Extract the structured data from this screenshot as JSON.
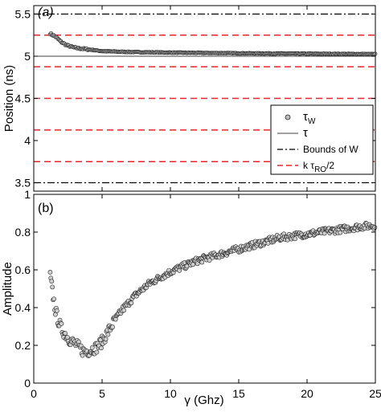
{
  "chart_data": [
    {
      "type": "scatter",
      "panel_label": "(a)",
      "xlabel": "",
      "ylabel": "Position (ns)",
      "xlim": [
        0,
        25
      ],
      "ylim": [
        3.4,
        5.6
      ],
      "x_ticks": [
        0,
        5,
        10,
        15,
        20,
        25
      ],
      "y_ticks": [
        3.5,
        4,
        4.5,
        5,
        5.5
      ],
      "y_tick_labels": [
        "3.5",
        "4",
        "4.5",
        "5",
        "5.5"
      ],
      "grid": false,
      "legend_position": "bottom-right",
      "legend": [
        {
          "symbol": "circle",
          "text": "τ",
          "sub": "W"
        },
        {
          "symbol": "solid-line",
          "text": "τ",
          "sub": ""
        },
        {
          "symbol": "dash-dot-line",
          "text": "Bounds of W",
          "sub": ""
        },
        {
          "symbol": "red-dashed-line",
          "text": "k τ",
          "sub": "RO",
          "suffix": "/2"
        }
      ],
      "tau": 5.0,
      "bounds_of_w": [
        3.5,
        5.5
      ],
      "k_tau_ro_half": [
        3.75,
        4.125,
        4.5,
        4.875,
        5.25
      ],
      "tau_w_points": [
        [
          1.2,
          5.27
        ],
        [
          1.4,
          5.25
        ],
        [
          1.6,
          5.23
        ],
        [
          1.8,
          5.2
        ],
        [
          2.0,
          5.17
        ],
        [
          2.2,
          5.15
        ],
        [
          2.4,
          5.13
        ],
        [
          2.6,
          5.12
        ],
        [
          2.8,
          5.11
        ],
        [
          3.0,
          5.1
        ],
        [
          3.5,
          5.09
        ],
        [
          4.0,
          5.08
        ],
        [
          4.5,
          5.07
        ],
        [
          5.0,
          5.06
        ],
        [
          6.0,
          5.055
        ],
        [
          7.0,
          5.05
        ],
        [
          8.0,
          5.047
        ],
        [
          9.0,
          5.045
        ],
        [
          10.0,
          5.043
        ],
        [
          11.0,
          5.041
        ],
        [
          12.0,
          5.04
        ],
        [
          13.0,
          5.038
        ],
        [
          14.0,
          5.037
        ],
        [
          15.0,
          5.035
        ],
        [
          16.0,
          5.034
        ],
        [
          17.0,
          5.033
        ],
        [
          18.0,
          5.032
        ],
        [
          19.0,
          5.031
        ],
        [
          20.0,
          5.03
        ],
        [
          21.0,
          5.029
        ],
        [
          22.0,
          5.028
        ],
        [
          23.0,
          5.027
        ],
        [
          24.0,
          5.026
        ],
        [
          25.0,
          5.025
        ]
      ]
    },
    {
      "type": "scatter",
      "panel_label": "(b)",
      "xlabel": "γ (Ghz)",
      "ylabel": "Amplitude",
      "xlim": [
        0,
        25
      ],
      "ylim": [
        0,
        1
      ],
      "x_ticks": [
        0,
        5,
        10,
        15,
        20,
        25
      ],
      "x_tick_labels": [
        "0",
        "5",
        "10",
        "15",
        "20",
        "25"
      ],
      "y_ticks": [
        0,
        0.2,
        0.4,
        0.6,
        0.8,
        1
      ],
      "y_tick_labels": [
        "0",
        "0.2",
        "0.4",
        "0.6",
        "0.8",
        "1"
      ],
      "grid": false,
      "amplitude_points": [
        [
          1.2,
          0.57
        ],
        [
          1.3,
          0.52
        ],
        [
          1.4,
          0.47
        ],
        [
          1.5,
          0.42
        ],
        [
          1.6,
          0.38
        ],
        [
          1.8,
          0.33
        ],
        [
          2.0,
          0.29
        ],
        [
          2.2,
          0.27
        ],
        [
          2.5,
          0.24
        ],
        [
          2.8,
          0.22
        ],
        [
          3.0,
          0.21
        ],
        [
          3.3,
          0.19
        ],
        [
          3.6,
          0.17
        ],
        [
          4.0,
          0.17
        ],
        [
          4.3,
          0.18
        ],
        [
          4.6,
          0.19
        ],
        [
          5.0,
          0.22
        ],
        [
          5.5,
          0.28
        ],
        [
          6.0,
          0.34
        ],
        [
          6.5,
          0.39
        ],
        [
          7.0,
          0.43
        ],
        [
          7.5,
          0.47
        ],
        [
          8.0,
          0.5
        ],
        [
          8.5,
          0.53
        ],
        [
          9.0,
          0.55
        ],
        [
          9.5,
          0.57
        ],
        [
          10.0,
          0.59
        ],
        [
          11.0,
          0.62
        ],
        [
          12.0,
          0.65
        ],
        [
          13.0,
          0.67
        ],
        [
          14.0,
          0.69
        ],
        [
          15.0,
          0.71
        ],
        [
          16.0,
          0.73
        ],
        [
          17.0,
          0.75
        ],
        [
          18.0,
          0.77
        ],
        [
          19.0,
          0.78
        ],
        [
          20.0,
          0.79
        ],
        [
          21.0,
          0.8
        ],
        [
          22.0,
          0.81
        ],
        [
          23.0,
          0.82
        ],
        [
          24.0,
          0.83
        ],
        [
          25.0,
          0.835
        ]
      ]
    }
  ]
}
